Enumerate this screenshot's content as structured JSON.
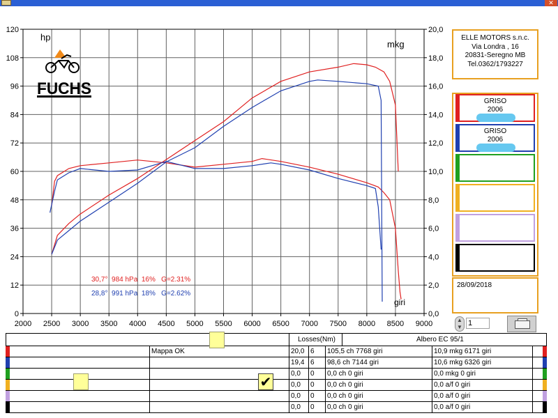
{
  "chart_data": {
    "type": "line",
    "title": "",
    "xlabel": "giri",
    "ylabel_left": "hp",
    "ylabel_right": "mkg",
    "xlim": [
      2000,
      9000
    ],
    "ylim_left": [
      0,
      120
    ],
    "ylim_right": [
      0,
      20
    ],
    "x_ticks": [
      "2000",
      "2500",
      "3000",
      "3500",
      "4000",
      "4500",
      "5000",
      "5500",
      "6000",
      "6500",
      "7000",
      "7500",
      "8000",
      "8500",
      "9000"
    ],
    "y_ticks_left": [
      "0",
      "12",
      "24",
      "36",
      "48",
      "60",
      "72",
      "84",
      "96",
      "108",
      "120"
    ],
    "y_ticks_right": [
      "0,0",
      "2,0",
      "4,0",
      "6,0",
      "8,0",
      "10,0",
      "12,0",
      "14,0",
      "16,0",
      "18,0",
      "20,0"
    ],
    "grid": true,
    "series": [
      {
        "name": "power-red",
        "axis": "left",
        "color": "#e02020",
        "x": [
          2500,
          2600,
          2800,
          3000,
          3500,
          4000,
          4500,
          5000,
          5500,
          6000,
          6500,
          7000,
          7500,
          7768,
          8000,
          8150,
          8300,
          8400,
          8500,
          8550
        ],
        "y": [
          25,
          33,
          38,
          42,
          50,
          57,
          65,
          73,
          81,
          91,
          98,
          102,
          104,
          105.5,
          105,
          104,
          102,
          98,
          88,
          60
        ]
      },
      {
        "name": "torque-red",
        "axis": "right",
        "color": "#e02020",
        "x": [
          2500,
          2550,
          2600,
          2800,
          3000,
          3500,
          4000,
          4500,
          5000,
          5500,
          6000,
          6171,
          6500,
          7000,
          7500,
          8000,
          8200,
          8300,
          8400,
          8500,
          8550,
          8580,
          8600
        ],
        "y": [
          7.6,
          9.3,
          9.7,
          10.2,
          10.4,
          10.6,
          10.8,
          10.6,
          10.3,
          10.5,
          10.7,
          10.9,
          10.7,
          10.3,
          9.8,
          9.2,
          8.9,
          8.5,
          8.0,
          6.0,
          3.0,
          1.5,
          1.0
        ]
      },
      {
        "name": "power-blue",
        "axis": "left",
        "color": "#2040b0",
        "x": [
          2500,
          2600,
          2800,
          3000,
          3500,
          4000,
          4500,
          5000,
          5500,
          6000,
          6500,
          7000,
          7144,
          7500,
          8000,
          8200,
          8250,
          8270
        ],
        "y": [
          25,
          31,
          35,
          39,
          47,
          55,
          64,
          70,
          79,
          87,
          94,
          98,
          98.6,
          98,
          97,
          96,
          90,
          5
        ]
      },
      {
        "name": "torque-blue",
        "axis": "right",
        "color": "#2040b0",
        "x": [
          2470,
          2550,
          2600,
          2800,
          3000,
          3500,
          4000,
          4500,
          5000,
          5500,
          6000,
          6326,
          6500,
          7000,
          7500,
          8000,
          8150,
          8200,
          8250
        ],
        "y": [
          7.1,
          8.6,
          9.4,
          9.9,
          10.2,
          10.0,
          10.1,
          10.7,
          10.2,
          10.2,
          10.4,
          10.6,
          10.5,
          10.1,
          9.5,
          9.0,
          8.8,
          7.5,
          4.5
        ]
      }
    ],
    "annotations": [
      {
        "text": "30,7°  984 hPa  16%   G=2.31%",
        "color": "#e02020"
      },
      {
        "text": "28,8°  991 hPa  18%   G=2.62%",
        "color": "#2040b0"
      }
    ],
    "logo_text": "FUCHS",
    "colors": {
      "grid": "#505050",
      "background": "#ffffff",
      "red": "#e02020",
      "blue": "#2040b0"
    }
  },
  "company": {
    "name": "ELLE MOTORS s.n.c.",
    "street": "Via Londra , 16",
    "city": "20831-Seregno MB",
    "tel": "Tel.0362/1793227"
  },
  "curves": [
    {
      "border": "#e02020",
      "line1": "GRISO",
      "line2": "2006",
      "blob": true
    },
    {
      "border": "#2040b0",
      "line1": "GRISO",
      "line2": "2006",
      "blob": true
    },
    {
      "border": "#20a020",
      "line1": "",
      "line2": "",
      "blob": false
    },
    {
      "border": "#f0b020",
      "line1": "",
      "line2": "",
      "blob": false
    },
    {
      "border": "#c0a0e0",
      "line1": "",
      "line2": "",
      "blob": false
    },
    {
      "border": "#000000",
      "line1": "",
      "line2": "",
      "blob": false
    }
  ],
  "date": "28/09/2018",
  "spinner_value": "1",
  "table": {
    "header_losses": "Losses(Nm)",
    "header_crank": "Albero EC 95/1",
    "rows": [
      {
        "color": "#e02020",
        "note": "Mappa OK",
        "loss": "20,0",
        "n": "6",
        "power": "105,5 ch 7768 giri",
        "torque": "10,9 mkg 6171 giri"
      },
      {
        "color": "#2040b0",
        "note": "",
        "loss": "19,4",
        "n": "6",
        "power": "98,6 ch 7144 giri",
        "torque": "10,6 mkg 6326 giri"
      },
      {
        "color": "#20a020",
        "note": "",
        "loss": "0,0",
        "n": "0",
        "power": "0,0 ch 0 giri",
        "torque": "0,0 mkg 0 giri"
      },
      {
        "color": "#f0b020",
        "note": "",
        "loss": "0,0",
        "n": "0",
        "power": "0,0 ch 0 giri",
        "torque": "0,0 a/f 0 giri"
      },
      {
        "color": "#c0a0e0",
        "note": "",
        "loss": "0,0",
        "n": "0",
        "power": "0,0 ch 0 giri",
        "torque": "0,0 a/f 0 giri"
      },
      {
        "color": "#000000",
        "note": "",
        "loss": "0,0",
        "n": "0",
        "power": "0,0 ch 0 giri",
        "torque": "0,0 a/f 0 giri"
      }
    ]
  }
}
